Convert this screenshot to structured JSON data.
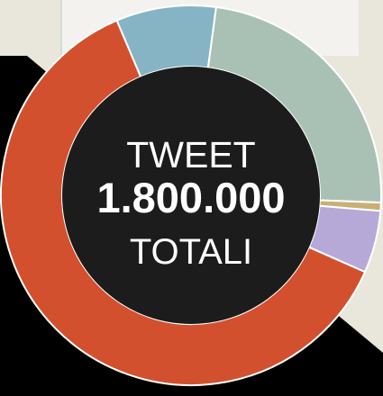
{
  "chart_data": {
    "type": "pie",
    "center_label": {
      "line1": "TWEET",
      "line2": "1.800.000",
      "line3": "TOTALI"
    },
    "slices": [
      {
        "value": 8.5,
        "color": "#86b4c5"
      },
      {
        "value": 23.5,
        "color": "#a9c1b5"
      },
      {
        "value": 0.7,
        "color": "#c9b072"
      },
      {
        "value": 5.3,
        "color": "#b6a9d8"
      },
      {
        "value": 62.0,
        "color": "#d2502e"
      }
    ]
  },
  "colors": {
    "background": "#e9e6dc",
    "center": "#1c1c1c",
    "separator": "#ffffff"
  }
}
